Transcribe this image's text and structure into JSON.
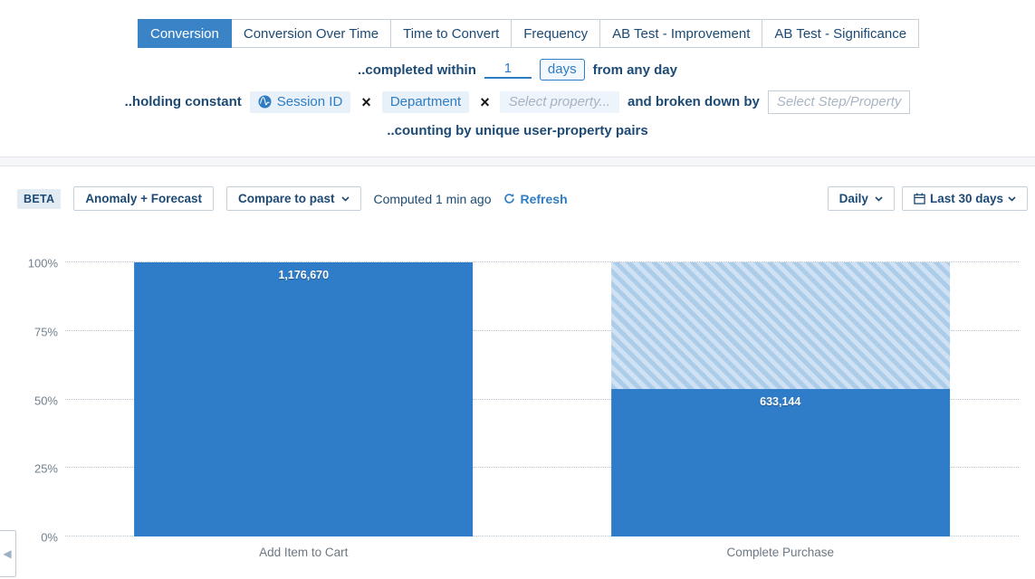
{
  "tabs": [
    {
      "label": "Conversion",
      "active": true
    },
    {
      "label": "Conversion Over Time",
      "active": false
    },
    {
      "label": "Time to Convert",
      "active": false
    },
    {
      "label": "Frequency",
      "active": false
    },
    {
      "label": "AB Test - Improvement",
      "active": false
    },
    {
      "label": "AB Test - Significance",
      "active": false
    }
  ],
  "query_builder": {
    "completed_within": {
      "label": "..completed within",
      "window_value": "1",
      "window_unit": "days",
      "suffix": "from any day"
    },
    "holding_constant": {
      "label": "..holding constant",
      "properties": [
        {
          "name": "Session ID",
          "has_icon": true,
          "icon": "amplitude-logo-icon"
        },
        {
          "name": "Department",
          "has_icon": false
        }
      ],
      "remove_symbol": "×",
      "add_placeholder": "Select property...",
      "breakdown_label": "and broken down by",
      "breakdown_placeholder": "Select Step/Property"
    },
    "counting_by": "..counting by unique user-property pairs"
  },
  "toolbar": {
    "beta_badge": "BETA",
    "anomaly_forecast_button": "Anomaly + Forecast",
    "compare_to_past_button": "Compare to past",
    "computed_status": "Computed 1 min ago",
    "refresh_button": "Refresh",
    "interval_select": "Daily",
    "date_range_select": "Last 30 days"
  },
  "chart_data": {
    "type": "bar",
    "subtype": "funnel-conversion",
    "categories": [
      "Add Item to Cart",
      "Complete Purchase"
    ],
    "values": [
      1176670,
      633144
    ],
    "value_labels": [
      "1,176,670",
      "633,144"
    ],
    "conversion_pct": [
      100,
      53.8
    ],
    "title": "",
    "xlabel": "",
    "ylabel": "",
    "y_ticks": [
      "0%",
      "25%",
      "50%",
      "75%",
      "100%"
    ],
    "ylim": [
      0,
      100
    ],
    "grid": "horizontal-dotted",
    "legend": "none",
    "bar_color": "#2f7dc8",
    "dropoff_hatch_colors": [
      "#abcdea",
      "#cfe1f3"
    ]
  },
  "side_panel": {
    "collapse_symbol": "◀"
  },
  "colors": {
    "accent_blue": "#2e7cc3",
    "navy_text": "#1c4a74",
    "bar_blue": "#2f7dc8",
    "active_tab_bg": "#3b83c7",
    "chip_bg": "#e8f1fa"
  }
}
